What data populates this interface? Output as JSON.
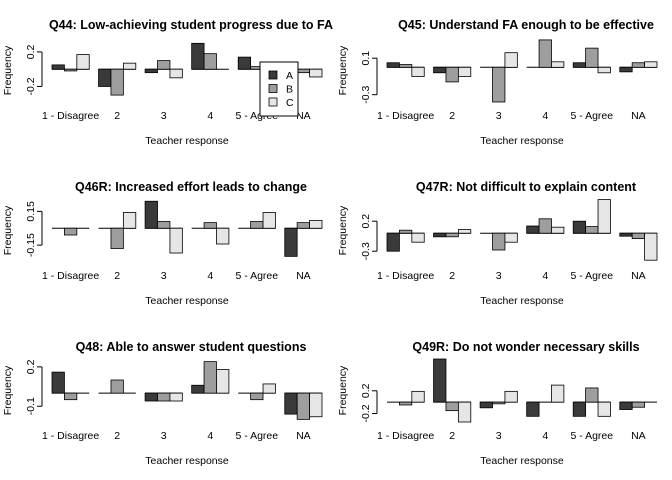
{
  "colors": {
    "A": "#3a3a3a",
    "B": "#9e9e9e",
    "C": "#e6e6e6",
    "axis": "#000000"
  },
  "legend": {
    "series": [
      "A",
      "B",
      "C"
    ],
    "panel": 0,
    "placement": "top-right"
  },
  "chart_data": [
    {
      "type": "bar",
      "title": "Q44: Low-achieving student progress due to FA",
      "xlabel": "Teacher response",
      "ylabel": "Frequency",
      "categories": [
        "1 - Disagree",
        "2",
        "3",
        "4",
        "5 - Agree",
        "NA"
      ],
      "yticks": [
        0.2,
        -0.2
      ],
      "ylim": [
        -0.38,
        0.35
      ],
      "series": [
        {
          "name": "A",
          "values": [
            0.05,
            -0.2,
            -0.04,
            0.3,
            0.14,
            -0.02
          ]
        },
        {
          "name": "B",
          "values": [
            -0.02,
            -0.3,
            0.1,
            0.18,
            0.03,
            -0.04
          ]
        },
        {
          "name": "C",
          "values": [
            0.17,
            0.07,
            -0.1,
            0.0,
            -0.05,
            -0.09
          ]
        }
      ]
    },
    {
      "type": "bar",
      "title": "Q45: Understand FA enough to be effective",
      "xlabel": "Teacher response",
      "ylabel": "Frequency",
      "categories": [
        "1 - Disagree",
        "2",
        "3",
        "4",
        "5 - Agree",
        "NA"
      ],
      "yticks": [
        0.1,
        -0.3
      ],
      "ylim": [
        -0.38,
        0.31
      ],
      "series": [
        {
          "name": "A",
          "values": [
            0.05,
            -0.06,
            0.0,
            0.0,
            0.05,
            -0.05
          ]
        },
        {
          "name": "B",
          "values": [
            0.03,
            -0.16,
            -0.38,
            0.3,
            0.21,
            0.05
          ]
        },
        {
          "name": "C",
          "values": [
            -0.1,
            -0.1,
            0.16,
            0.06,
            -0.06,
            0.06
          ]
        }
      ]
    },
    {
      "type": "bar",
      "title": "Q46R: Increased effort leads to change",
      "xlabel": "Teacher response",
      "ylabel": "Frequency",
      "categories": [
        "1 - Disagree",
        "2",
        "3",
        "4",
        "5 - Agree",
        "NA"
      ],
      "yticks": [
        0.15,
        -0.15
      ],
      "ylim": [
        -0.3,
        0.26
      ],
      "series": [
        {
          "name": "A",
          "values": [
            0.0,
            0.0,
            0.24,
            0.0,
            0.0,
            -0.25
          ]
        },
        {
          "name": "B",
          "values": [
            -0.06,
            -0.18,
            0.06,
            0.05,
            0.06,
            0.05
          ]
        },
        {
          "name": "C",
          "values": [
            0.0,
            0.14,
            -0.22,
            -0.14,
            0.14,
            0.07
          ]
        }
      ]
    },
    {
      "type": "bar",
      "title": "Q47R: Not difficult to explain content",
      "xlabel": "Teacher response",
      "ylabel": "Frequency",
      "categories": [
        "1 - Disagree",
        "2",
        "3",
        "4",
        "5 - Agree",
        "NA"
      ],
      "yticks": [
        0.2,
        -0.3
      ],
      "ylim": [
        -0.48,
        0.57
      ],
      "series": [
        {
          "name": "A",
          "values": [
            -0.3,
            -0.06,
            0.0,
            0.12,
            0.2,
            -0.05
          ]
        },
        {
          "name": "B",
          "values": [
            0.05,
            -0.06,
            -0.28,
            0.24,
            0.11,
            -0.09
          ]
        },
        {
          "name": "C",
          "values": [
            -0.15,
            0.06,
            -0.15,
            0.1,
            0.56,
            -0.45
          ]
        }
      ]
    },
    {
      "type": "bar",
      "title": "Q48: Able to answer student questions",
      "xlabel": "Teacher response",
      "ylabel": "Frequency",
      "categories": [
        "1 - Disagree",
        "2",
        "3",
        "4",
        "5 - Agree",
        "NA"
      ],
      "yticks": [
        0.2,
        -0.1
      ],
      "ylim": [
        -0.22,
        0.26
      ],
      "series": [
        {
          "name": "A",
          "values": [
            0.16,
            0.0,
            -0.06,
            0.06,
            0.0,
            -0.16
          ]
        },
        {
          "name": "B",
          "values": [
            -0.05,
            0.1,
            -0.06,
            0.24,
            -0.05,
            -0.2
          ]
        },
        {
          "name": "C",
          "values": [
            0.0,
            0.0,
            -0.06,
            0.18,
            0.07,
            -0.18
          ]
        }
      ]
    },
    {
      "type": "bar",
      "title": "Q49R: Do not wonder necessary skills",
      "xlabel": "Teacher response",
      "ylabel": "Frequency",
      "categories": [
        "1 - Disagree",
        "2",
        "3",
        "4",
        "5 - Agree",
        "NA"
      ],
      "yticks": [
        0.2,
        -0.2
      ],
      "ylim": [
        -0.35,
        0.76
      ],
      "series": [
        {
          "name": "A",
          "values": [
            0.0,
            0.76,
            -0.1,
            -0.25,
            -0.25,
            -0.13
          ]
        },
        {
          "name": "B",
          "values": [
            -0.05,
            -0.15,
            -0.03,
            0.0,
            0.25,
            -0.09
          ]
        },
        {
          "name": "C",
          "values": [
            0.19,
            -0.35,
            0.19,
            0.3,
            -0.25,
            0.0
          ]
        }
      ]
    }
  ]
}
